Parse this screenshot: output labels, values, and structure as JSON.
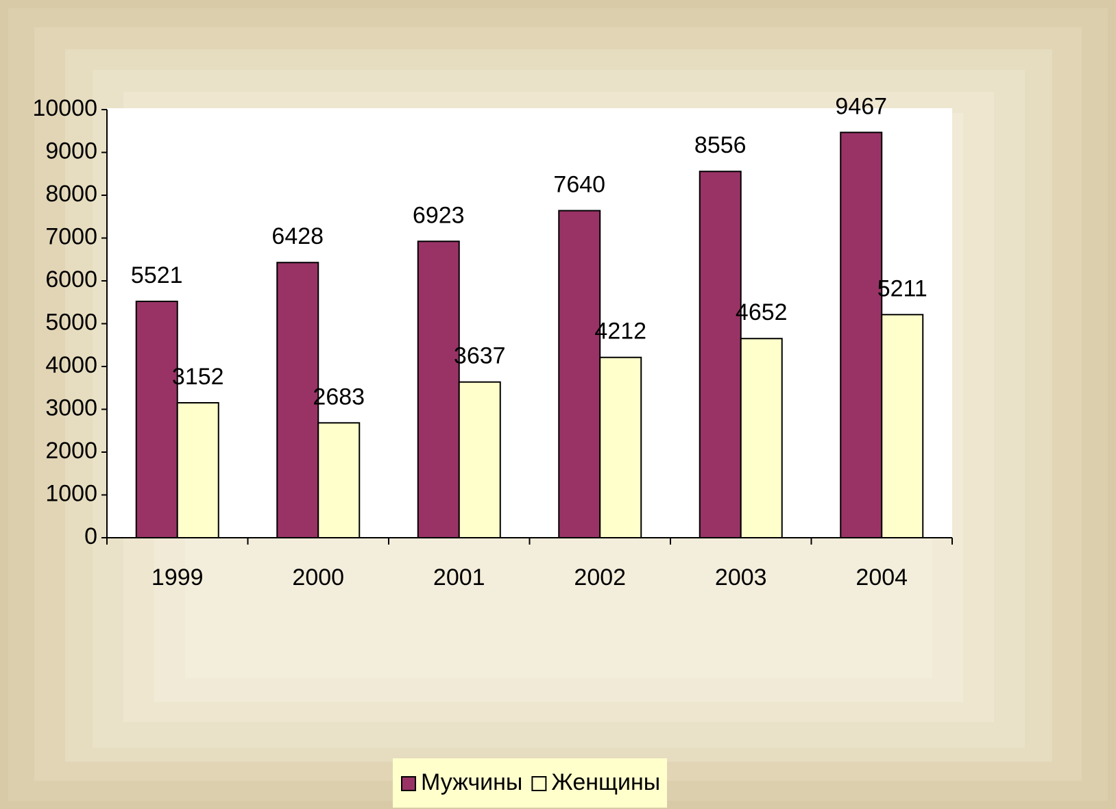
{
  "chart_data": {
    "type": "bar",
    "categories": [
      "1999",
      "2000",
      "2001",
      "2002",
      "2003",
      "2004"
    ],
    "series": [
      {
        "name": "Мужчины",
        "color": "#993366",
        "values": [
          5521,
          6428,
          6923,
          7640,
          8556,
          9467
        ]
      },
      {
        "name": "Женщины",
        "color": "#ffffcc",
        "values": [
          3152,
          2683,
          3637,
          4212,
          4652,
          5211
        ]
      }
    ],
    "ylim": [
      0,
      10000
    ],
    "yticks": [
      0,
      1000,
      2000,
      3000,
      4000,
      5000,
      6000,
      7000,
      8000,
      9000,
      10000
    ],
    "grid": false,
    "legend": "bottom"
  }
}
